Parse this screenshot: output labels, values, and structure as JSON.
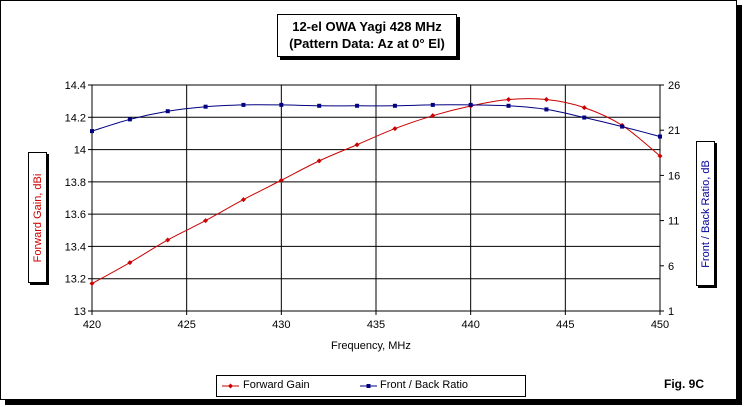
{
  "chart_data": {
    "type": "line",
    "title": "12-el OWA Yagi 428 MHz",
    "subtitle": "(Pattern Data: Az at 0° El)",
    "xlabel": "Frequency, MHz",
    "ylabel_left": "Forward Gain, dBi",
    "ylabel_right": "Front / Back Ratio, dB",
    "xlim": [
      420,
      450
    ],
    "ylim_left": [
      13,
      14.4
    ],
    "ylim_right": [
      1,
      26
    ],
    "x_ticks": [
      "420",
      "425",
      "430",
      "435",
      "440",
      "445",
      "450"
    ],
    "y_ticks_left": [
      "13",
      "13.2",
      "13.4",
      "13.6",
      "13.8",
      "14",
      "14.2",
      "14.4"
    ],
    "y_ticks_right": [
      "1",
      "6",
      "11",
      "16",
      "21",
      "26"
    ],
    "grid": true,
    "series": [
      {
        "name": "Forward Gain",
        "axis": "left",
        "color": "#cc0000",
        "marker": "diamond",
        "x": [
          420,
          422,
          424,
          426,
          428,
          430,
          432,
          434,
          436,
          438,
          440,
          442,
          444,
          446,
          448,
          450
        ],
        "values": [
          13.17,
          13.3,
          13.44,
          13.56,
          13.69,
          13.81,
          13.93,
          14.03,
          14.13,
          14.21,
          14.27,
          14.31,
          14.31,
          14.26,
          14.15,
          13.96
        ]
      },
      {
        "name": "Front / Back Ratio",
        "axis": "right",
        "color": "#000080",
        "marker": "square",
        "x": [
          420,
          422,
          424,
          426,
          428,
          430,
          432,
          434,
          436,
          438,
          440,
          442,
          444,
          446,
          448,
          450
        ],
        "values": [
          20.9,
          22.2,
          23.1,
          23.6,
          23.8,
          23.8,
          23.7,
          23.7,
          23.7,
          23.8,
          23.8,
          23.7,
          23.3,
          22.4,
          21.4,
          20.3
        ]
      }
    ]
  },
  "legend": {
    "gain_label": "Forward Gain",
    "fb_label": "Front / Back Ratio"
  },
  "figure_label": "Fig. 9C"
}
